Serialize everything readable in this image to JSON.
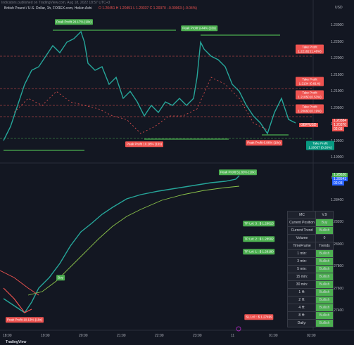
{
  "header": {
    "published": "Indicators published on TradingView.com, Aug 18, 2022 18:57 UTC+3",
    "symbol": "British Pound / U.S. Dollar, 1h, FOREX.com, Heikin Ashi",
    "ohlc": "O 1.20451 H 1.20451 L 1.20337 C 1.20370 −0.00063 (−0.04%)"
  },
  "top_pane": {
    "currency": "USD",
    "price_labels": [
      "1.23000",
      "1.22500",
      "1.22000",
      "1.21500",
      "1.21000",
      "1.20500",
      "1.20000",
      "1.19500",
      "1.19000"
    ],
    "annotations": [
      "Peak Profit 20.17% (10x)",
      "Peak Profit 9.44% (10x)",
      "Take Profit 1.22182 (1.48%)",
      "Take Profit 1.2134 (0.81%)",
      "Take Profit 1.21050 (0.53%)",
      "Take Profit 1.20660 (0.19%)",
      "Peak Profit 10.28% (10x)",
      "Peak Profit 6.86% (10x)",
      "Take Profit 1.20057 (0.26%)"
    ],
    "right_labels": [
      "1.20384",
      "1.20370",
      "02:03",
      "GBP/USD"
    ]
  },
  "bottom_pane": {
    "price_labels": [
      "1.28600",
      "1.28400",
      "1.28200",
      "1.28000",
      "1.27800",
      "1.27600",
      "1.27400"
    ],
    "annotations": [
      "Peak Profit 51.83% (10x)",
      "TP Lvl: 3 : $ 1.28813",
      "TP Lvl: 2 : $ 1.28502",
      "TP Lvl: 1 : $ 1.28180",
      "SL Lvl: : $ 1.27499",
      "Peak Profit 10.13% (10x)",
      "Buy"
    ],
    "right_labels": [
      "1.28620",
      "1.28541",
      "02:03"
    ]
  },
  "table": {
    "rows": [
      [
        "MC",
        "V.9"
      ],
      [
        "Current Position",
        "Buy"
      ],
      [
        "Current Trend",
        "Bullish"
      ],
      [
        "Volume",
        "0"
      ],
      [
        "TimeFrame",
        "Trends"
      ],
      [
        "1 min:",
        "Bullish"
      ],
      [
        "3 min:",
        "Bullish"
      ],
      [
        "5 min:",
        "Bullish"
      ],
      [
        "15 min:",
        "Bullish"
      ],
      [
        "30 min:",
        "Bullish"
      ],
      [
        "1 H:",
        "Bullish"
      ],
      [
        "2 H:",
        "Bullish"
      ],
      [
        "4 H:",
        "Bullish"
      ],
      [
        "8 H:",
        "Bullish"
      ],
      [
        "Daily:",
        "Bullish"
      ]
    ]
  },
  "time_axis": [
    "18:00",
    "19:00",
    "20:00",
    "21:00",
    "22:00",
    "23:00",
    "11",
    "01:00",
    "02:00"
  ],
  "footer": "TradingView"
}
